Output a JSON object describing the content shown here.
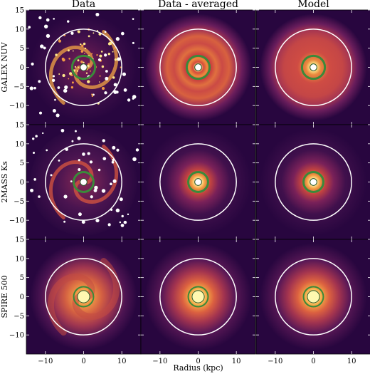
{
  "columns": [
    "Data",
    "Data - averaged",
    "Model"
  ],
  "rows": [
    "GALEX NUV",
    "2MASS Ks",
    "SPIRE 500"
  ],
  "xlabel": "Radius (kpc)",
  "axis": {
    "range": [
      -15,
      15
    ],
    "x_ticks": [
      -10,
      0,
      10
    ],
    "y_ticks": [
      15,
      10,
      5,
      0,
      -5,
      -10
    ]
  },
  "tick_labels": {
    "x": [
      "−10",
      "0",
      "10"
    ],
    "y": [
      "15",
      "10",
      "5",
      "0",
      "−5",
      "−10"
    ]
  },
  "ring_radii_kpc": {
    "outer_white": 10,
    "green": [
      3.0,
      2.6,
      2.6
    ],
    "inner": [
      0.9,
      0.9,
      1.6
    ]
  },
  "colors": {
    "background": "#28063f",
    "outer_ring": "#ffffff",
    "green_ring": "#3a8a3a",
    "masked_source": "#ffffff"
  }
}
